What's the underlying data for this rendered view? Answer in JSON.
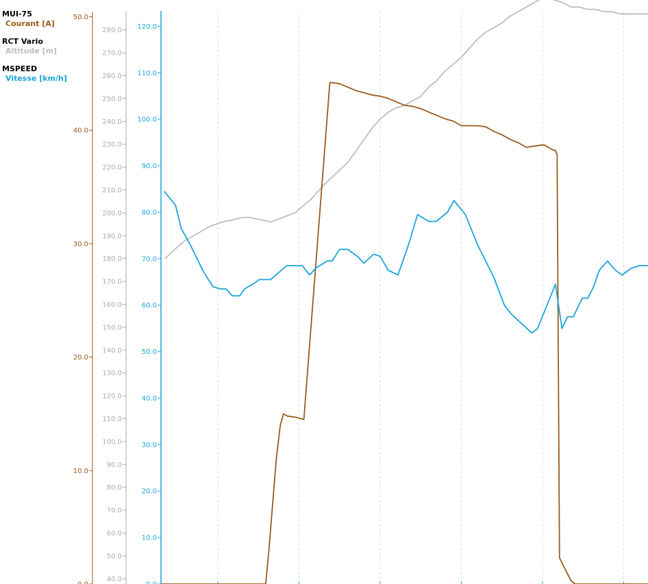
{
  "legend": [
    {
      "device": "MUI-75",
      "sensor": "Courant [A]",
      "color": "#9a5a1a"
    },
    {
      "device": "RCT Vario",
      "sensor": "Altitude [m]",
      "color": "#bdbdbd"
    },
    {
      "device": "MSPEED",
      "sensor": "Vitesse [km/h]",
      "color": "#1aa4db"
    }
  ],
  "chart_data": {
    "type": "line",
    "title": "",
    "grid": true,
    "axes": [
      {
        "id": "courant",
        "color": "#9a5a1a",
        "ylim": [
          0,
          50
        ],
        "ticks": [
          "0.0",
          "10.0",
          "20.0",
          "30.0",
          "40.0",
          "50.0"
        ]
      },
      {
        "id": "altitude",
        "color": "#aaaaaa",
        "ylim": [
          35,
          285
        ],
        "ticks": [
          "40.0",
          "50.0",
          "60.0",
          "70.0",
          "80.0",
          "90.0",
          "100.0",
          "110.0",
          "120.0",
          "130.0",
          "140.0",
          "150.0",
          "160.0",
          "170.0",
          "180.0",
          "190.0",
          "200.0",
          "210.0",
          "220.0",
          "230.0",
          "240.0",
          "250.0",
          "260.0",
          "270.0",
          "280.0"
        ]
      },
      {
        "id": "vitesse",
        "color": "#1aa4db",
        "ylim": [
          0,
          125
        ],
        "ticks": [
          "0.0",
          "10.0",
          "20.0",
          "30.0",
          "40.0",
          "50.0",
          "60.0",
          "70.0",
          "80.0",
          "90.0",
          "100.0",
          "110.0",
          "120.0"
        ]
      }
    ],
    "xlim": [
      0,
      60
    ],
    "x_gridlines": [
      7,
      17,
      27,
      37,
      47,
      57
    ],
    "series": [
      {
        "name": "Courant [A]",
        "axis": "courant",
        "color": "#9a5a1a",
        "x": [
          0,
          12.9,
          13.3,
          14.2,
          14.7,
          15.1,
          15.6,
          16.6,
          17.6,
          20.8,
          21.1,
          22,
          23,
          24,
          25,
          26,
          27,
          28,
          29,
          30,
          31,
          32,
          33,
          34,
          35,
          36,
          37,
          38,
          39,
          40,
          41,
          42,
          43,
          44,
          45,
          47,
          47.2,
          48.2,
          48.6,
          48.7,
          48.8,
          49.1,
          50.5,
          51,
          51.5,
          60
        ],
        "y": [
          0,
          0,
          3,
          11,
          14,
          15,
          14.8,
          14.7,
          14.5,
          44.2,
          44.2,
          44.1,
          43.8,
          43.5,
          43.3,
          43.1,
          43.0,
          42.8,
          42.5,
          42.2,
          42.1,
          41.9,
          41.6,
          41.3,
          41.0,
          40.8,
          40.4,
          40.4,
          40.4,
          40.3,
          39.9,
          39.6,
          39.2,
          38.9,
          38.5,
          38.7,
          38.7,
          38.3,
          38.2,
          38.0,
          37.9,
          2.3,
          0.3,
          0,
          0,
          0
        ],
        "render_y": [
          0,
          0,
          3,
          11,
          14,
          15,
          14.8,
          14.7,
          14.5,
          44.2,
          44.2,
          44.1,
          43.8,
          43.5,
          43.3,
          43.1,
          43.0,
          42.8,
          42.5,
          42.2,
          42.1,
          41.9,
          41.6,
          41.3,
          41.0,
          40.8,
          40.4,
          40.4,
          40.4,
          40.3,
          39.9,
          39.6,
          39.2,
          38.9,
          38.5,
          38.7,
          38.7,
          38.3,
          38.2,
          38.0,
          37.9,
          2.3,
          0.3,
          0,
          0,
          0
        ]
      },
      {
        "name": "Altitude [m]",
        "axis": "altitude",
        "color": "#bdbdbd",
        "x": [
          0.5,
          2,
          3,
          5,
          6,
          7.5,
          9,
          10,
          11,
          13.5,
          15,
          16.5,
          18.5,
          20,
          21.5,
          23,
          25,
          26,
          27,
          28,
          29,
          30,
          31,
          32,
          33,
          34,
          35,
          36,
          37,
          38,
          39,
          40,
          41,
          42,
          43,
          44,
          45,
          46,
          47,
          48,
          48.5,
          49.5,
          50.5,
          51.5,
          52.5,
          53.5,
          54.5,
          55.5,
          56.5,
          57.5,
          58.5,
          59.5,
          60
        ],
        "y": [
          180,
          185,
          188,
          192,
          194,
          196,
          197,
          198,
          198,
          196,
          198,
          200,
          206,
          212,
          217,
          222,
          232,
          237,
          241,
          244,
          246,
          247,
          249,
          251,
          255,
          258,
          262,
          265,
          268,
          272,
          276,
          279,
          281,
          283,
          286,
          288,
          290,
          292,
          294,
          294,
          293,
          292,
          290,
          290,
          289,
          289,
          288,
          288,
          287,
          287,
          287,
          287,
          287
        ],
        "render_y": [
          180,
          185,
          188,
          192,
          194,
          196,
          197,
          198,
          198,
          196,
          198,
          200,
          206,
          212,
          217,
          222,
          232,
          237,
          241,
          244,
          246,
          247,
          249,
          251,
          255,
          258,
          262,
          265,
          268,
          272,
          276,
          279,
          281,
          283,
          286,
          288,
          290,
          292,
          294,
          294,
          293,
          292,
          290,
          290,
          289,
          289,
          288,
          288,
          287,
          287,
          287,
          287,
          287
        ]
      },
      {
        "name": "Vitesse [km/h]",
        "axis": "vitesse",
        "color": "#1aa4db",
        "x": [
          0.4,
          1.8,
          2.5,
          3.6,
          5.3,
          6.4,
          7.3,
          8,
          8.8,
          9.7,
          10.3,
          11.3,
          12.1,
          13.5,
          14.5,
          15.5,
          16.6,
          17.4,
          18.3,
          19.1,
          20.5,
          21.1,
          22,
          23,
          24.2,
          25,
          26.2,
          27,
          28,
          29.2,
          30.5,
          31.6,
          33,
          33.9,
          35.3,
          36.1,
          37.5,
          39,
          41,
          42.3,
          43.2,
          45.7,
          46.4,
          48.6,
          49.4,
          50.1,
          50.8,
          51.9,
          52.6,
          53.3,
          54,
          55,
          56,
          56.8,
          58,
          59,
          60
        ],
        "y": [
          84.5,
          81.5,
          76.5,
          73,
          67,
          64,
          63.5,
          63.5,
          62,
          62,
          63.5,
          64.5,
          65.5,
          65.5,
          67,
          68.5,
          68.5,
          68.5,
          66.5,
          68,
          69.5,
          69.5,
          72,
          72,
          70.5,
          69,
          71,
          70.5,
          67.5,
          66.5,
          73,
          79.5,
          78,
          78,
          80,
          82.5,
          79.5,
          73,
          66,
          60,
          58,
          54,
          55,
          64.5,
          55,
          57.5,
          57.5,
          61.5,
          61.5,
          64,
          67.5,
          69.5,
          67.5,
          66.5,
          68,
          68.5,
          68.5
        ],
        "render_y": [
          84.5,
          81.5,
          76.5,
          73,
          67,
          64,
          63.5,
          63.5,
          62,
          62,
          63.5,
          64.5,
          65.5,
          65.5,
          67,
          68.5,
          68.5,
          68.5,
          66.5,
          68,
          69.5,
          69.5,
          72,
          72,
          70.5,
          69,
          71,
          70.5,
          67.5,
          66.5,
          73,
          79.5,
          78,
          78,
          80,
          82.5,
          79.5,
          73,
          66,
          60,
          58,
          54,
          55,
          64.5,
          55,
          57.5,
          57.5,
          61.5,
          61.5,
          64,
          67.5,
          69.5,
          67.5,
          66.5,
          68,
          68.5,
          68.5
        ]
      }
    ]
  }
}
